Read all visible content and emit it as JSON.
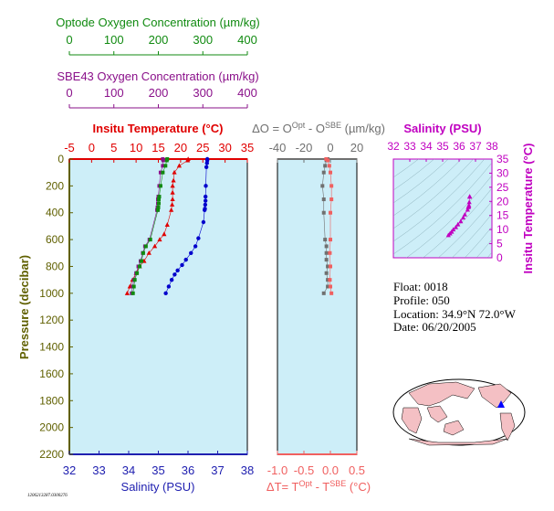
{
  "colors": {
    "optode": "#108a10",
    "sbe": "#8a108a",
    "temperature": "#e00000",
    "salinity_axis": "#2020b0",
    "salinity_ts": "#c000c0",
    "pressure": "#606000",
    "delta_o": "#707070",
    "delta_t": "#f06060",
    "plot_bg": "#cdeef8",
    "land": "#f4c0c4",
    "ocean": "#ffffff"
  },
  "optode_axis": {
    "title": "Optode Oxygen Concentration (µm/kg)",
    "ticks": [
      "0",
      "100",
      "200",
      "300",
      "400"
    ],
    "range": [
      0,
      400
    ]
  },
  "sbe_axis": {
    "title": "SBE43 Oxygen Concentration (µm/kg)",
    "ticks": [
      "0",
      "100",
      "200",
      "300",
      "400"
    ],
    "range": [
      0,
      400
    ]
  },
  "info": {
    "float_line": "Float:  0018",
    "profile_line": "Profile:  050",
    "location_line": "Location:  34.9°N  72.0°W",
    "date_line": "Date:  06/20/2005"
  },
  "footer_id": "1206213287.0300276",
  "chart_data": [
    {
      "type": "line",
      "panel": "profiles",
      "title": "Insitu Temperature (°C)",
      "ylabel": "Pressure (decibar)",
      "xlabel": "Salinity (PSU)",
      "ylim": [
        2200,
        0
      ],
      "y_ticks": [
        "0",
        "200",
        "400",
        "600",
        "800",
        "1000",
        "1200",
        "1400",
        "1600",
        "1800",
        "2000",
        "2200"
      ],
      "temperature_axis": {
        "range": [
          -5,
          35
        ],
        "ticks": [
          "-5",
          "0",
          "5",
          "10",
          "15",
          "20",
          "25",
          "30",
          "35"
        ]
      },
      "salinity_axis": {
        "range": [
          32,
          38
        ],
        "ticks": [
          "32",
          "33",
          "34",
          "35",
          "36",
          "37",
          "38"
        ]
      },
      "series": [
        {
          "axis": "temperature",
          "color": "#e00000",
          "marker": "triangle",
          "points": [
            [
              21.7,
              0
            ],
            [
              21.6,
              10
            ],
            [
              19.7,
              50
            ],
            [
              18.6,
              100
            ],
            [
              18.4,
              160
            ],
            [
              18.2,
              200
            ],
            [
              18.2,
              250
            ],
            [
              18.2,
              300
            ],
            [
              18.1,
              340
            ],
            [
              17.9,
              380
            ],
            [
              17.0,
              490
            ],
            [
              16.3,
              560
            ],
            [
              15.3,
              600
            ],
            [
              14.2,
              650
            ],
            [
              12.9,
              700
            ],
            [
              11.8,
              760
            ],
            [
              10.8,
              800
            ],
            [
              10.0,
              850
            ],
            [
              9.2,
              900
            ],
            [
              8.6,
              950
            ],
            [
              8.0,
              1000
            ]
          ]
        },
        {
          "axis": "salinity",
          "color": "#0000cc",
          "marker": "circle",
          "points": [
            [
              36.65,
              0
            ],
            [
              36.65,
              10
            ],
            [
              36.64,
              30
            ],
            [
              36.62,
              60
            ],
            [
              36.6,
              200
            ],
            [
              36.59,
              280
            ],
            [
              36.59,
              310
            ],
            [
              36.58,
              340
            ],
            [
              36.57,
              370
            ],
            [
              36.56,
              380
            ],
            [
              36.52,
              470
            ],
            [
              36.35,
              590
            ],
            [
              36.25,
              650
            ],
            [
              36.1,
              700
            ],
            [
              35.93,
              750
            ],
            [
              35.8,
              790
            ],
            [
              35.65,
              830
            ],
            [
              35.55,
              860
            ],
            [
              35.45,
              900
            ],
            [
              35.35,
              950
            ],
            [
              35.25,
              1000
            ]
          ]
        },
        {
          "axis": "sbe43",
          "color": "#8a108a",
          "marker": "square",
          "points": [
            [
              210,
              0
            ],
            [
              211,
              10
            ],
            [
              210,
              50
            ],
            [
              205,
              100
            ],
            [
              202,
              200
            ],
            [
              200,
              280
            ],
            [
              199,
              300
            ],
            [
              199,
              330
            ],
            [
              198,
              360
            ],
            [
              197,
              380
            ],
            [
              180,
              600
            ],
            [
              170,
              650
            ],
            [
              165,
              700
            ],
            [
              160,
              760
            ],
            [
              155,
              800
            ],
            [
              150,
              850
            ],
            [
              145,
              900
            ],
            [
              142,
              950
            ],
            [
              140,
              1000
            ]
          ]
        },
        {
          "axis": "optode",
          "color": "#108a10",
          "marker": "square",
          "points": [
            [
              220,
              0
            ],
            [
              219,
              10
            ],
            [
              216,
              50
            ],
            [
              210,
              100
            ],
            [
              205,
              200
            ],
            [
              202,
              280
            ],
            [
              201,
              300
            ],
            [
              201,
              330
            ],
            [
              200,
              360
            ],
            [
              199,
              380
            ],
            [
              182,
              600
            ],
            [
              172,
              650
            ],
            [
              166,
              700
            ],
            [
              162,
              760
            ],
            [
              158,
              800
            ],
            [
              152,
              850
            ],
            [
              147,
              900
            ],
            [
              145,
              950
            ],
            [
              143,
              1000
            ]
          ]
        }
      ]
    },
    {
      "type": "line",
      "panel": "differences",
      "title": "ΔO = O^Opt - O^SBE (µm/kg)",
      "xlabel": "ΔT= T^Opt - T^SBE (°C)",
      "ylim": [
        2200,
        0
      ],
      "delta_o_axis": {
        "range": [
          -40,
          20
        ],
        "ticks": [
          "-40",
          "-20",
          "0",
          "20"
        ]
      },
      "delta_t_axis": {
        "range": [
          -1.0,
          0.5
        ],
        "ticks": [
          "-1.0",
          "-0.5",
          "0.0",
          "0.5"
        ]
      },
      "series": [
        {
          "axis": "delta_o",
          "color": "#707070",
          "marker": "square",
          "points": [
            [
              -2,
              0
            ],
            [
              -3,
              10
            ],
            [
              -4,
              50
            ],
            [
              -5,
              100
            ],
            [
              -6,
              200
            ],
            [
              -5,
              300
            ],
            [
              -5,
              400
            ],
            [
              -4,
              600
            ],
            [
              -3,
              650
            ],
            [
              -3,
              700
            ],
            [
              -3,
              750
            ],
            [
              -2,
              800
            ],
            [
              -3,
              850
            ],
            [
              -2,
              900
            ],
            [
              -2,
              950
            ],
            [
              -5,
              1000
            ]
          ]
        },
        {
          "axis": "delta_t",
          "color": "#f06060",
          "marker": "square",
          "points": [
            [
              -0.08,
              0
            ],
            [
              -0.05,
              10
            ],
            [
              -0.02,
              50
            ],
            [
              0.0,
              100
            ],
            [
              0.02,
              200
            ],
            [
              0.02,
              300
            ],
            [
              0.0,
              400
            ],
            [
              0.0,
              600
            ],
            [
              -0.01,
              700
            ],
            [
              0.0,
              800
            ],
            [
              -0.01,
              900
            ],
            [
              0.0,
              950
            ],
            [
              0.02,
              1000
            ]
          ]
        }
      ]
    },
    {
      "type": "scatter",
      "panel": "ts_diagram",
      "title": "Salinity (PSU)",
      "ylabel": "Insitu Temperature (°C)",
      "xlim": [
        32,
        38
      ],
      "ylim": [
        0,
        35
      ],
      "x_ticks": [
        "32",
        "33",
        "34",
        "35",
        "36",
        "37",
        "38"
      ],
      "y_ticks": [
        "0",
        "5",
        "10",
        "15",
        "20",
        "25",
        "30",
        "35"
      ],
      "series": [
        {
          "color": "#c000c0",
          "marker": "triangle",
          "points": [
            [
              36.65,
              21.7
            ],
            [
              36.64,
              21.6
            ],
            [
              36.62,
              19.7
            ],
            [
              36.6,
              18.6
            ],
            [
              36.59,
              18.2
            ],
            [
              36.58,
              18.1
            ],
            [
              36.56,
              17.9
            ],
            [
              36.52,
              17.0
            ],
            [
              36.35,
              15.3
            ],
            [
              36.25,
              14.2
            ],
            [
              36.1,
              12.9
            ],
            [
              35.93,
              11.8
            ],
            [
              35.8,
              10.8
            ],
            [
              35.65,
              10.0
            ],
            [
              35.55,
              9.2
            ],
            [
              35.45,
              8.6
            ],
            [
              35.35,
              8.0
            ]
          ]
        }
      ]
    }
  ]
}
